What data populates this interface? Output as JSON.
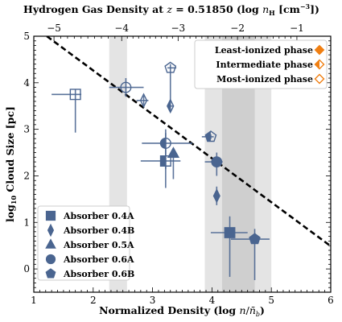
{
  "chart_data": {
    "type": "scatter",
    "title": "Hydrogen Gas Density at z = 0.51850 (log n_H [cm^-3])",
    "title_parts": {
      "prefix": "Hydrogen Gas Density at ",
      "z_symbol": "z",
      "z_eq": " = 0.51850 (log ",
      "n_symbol": "n",
      "n_sub": "H",
      "suffix": " [cm",
      "sup": "−3",
      "close": "])"
    },
    "xlabel": "Normalized Density (log n/n̄_b)",
    "xlabel_parts": {
      "prefix": "Normalized Density (log ",
      "n": "n",
      "slash": "/",
      "nbar": "n̄",
      "sub": "b",
      "close": ")"
    },
    "ylabel": "log10 Cloud Size [pc]",
    "ylabel_parts": {
      "prefix": "log",
      "sub": "10",
      "suffix": " Cloud Size [pc]"
    },
    "xlim": [
      1,
      6
    ],
    "ylim": [
      -0.5,
      5
    ],
    "x_ticks": [
      "1",
      "2",
      "3",
      "4",
      "5",
      "6"
    ],
    "y_ticks": [
      "0",
      "1",
      "2",
      "3",
      "4",
      "5"
    ],
    "top_axis": {
      "ticks": [
        {
          "label": "−5",
          "x": 1.34
        },
        {
          "label": "−4",
          "x": 2.48
        },
        {
          "label": "−3",
          "x": 3.43
        },
        {
          "label": "−2",
          "x": 4.43
        },
        {
          "label": "−1",
          "x": 5.43
        }
      ]
    },
    "shaded_regions": [
      {
        "x0": 2.27,
        "x1": 2.57,
        "shade": "light"
      },
      {
        "x0": 3.88,
        "x1": 5.0,
        "shade": "light"
      },
      {
        "x0": 4.17,
        "x1": 4.72,
        "shade": "dark"
      }
    ],
    "trend_line": {
      "style": "dashed",
      "x": [
        1.22,
        6.0
      ],
      "y": [
        5.0,
        0.49
      ]
    },
    "color": "#4a6590",
    "ionization_legend": {
      "position": "top-right",
      "color": "#f07f12",
      "items": [
        {
          "label": "Least-ionized phase",
          "marker": "filled-diamond"
        },
        {
          "label": "Intermediate phase",
          "marker": "half-diamond"
        },
        {
          "label": "Most-ionized phase",
          "marker": "open-diamond"
        }
      ]
    },
    "absorber_legend": {
      "position": "bottom-left",
      "items": [
        {
          "label": "Absorber 0.4A",
          "marker": "square"
        },
        {
          "label": "Absorber 0.4B",
          "marker": "thin-diamond"
        },
        {
          "label": "Absorber 0.5A",
          "marker": "triangle"
        },
        {
          "label": "Absorber 0.6A",
          "marker": "circle"
        },
        {
          "label": "Absorber 0.6B",
          "marker": "pentagon"
        }
      ]
    },
    "series": [
      {
        "name": "Absorber 0.4A",
        "marker": "square",
        "points": [
          {
            "x": 1.7,
            "y": 3.75,
            "fill": "open",
            "xerr": [
              0.4,
              0.1
            ],
            "yerr": [
              0.82,
              0.1
            ]
          },
          {
            "x": 3.22,
            "y": 2.32,
            "fill": "half",
            "xerr": [
              0.42,
              0.25
            ],
            "yerr": [
              0.58,
              0.6
            ]
          },
          {
            "x": 4.3,
            "y": 0.78,
            "fill": "filled",
            "xerr": [
              0.32,
              0.3
            ],
            "yerr": [
              0.95,
              0.35
            ]
          }
        ]
      },
      {
        "name": "Absorber 0.4B",
        "marker": "thin-diamond",
        "points": [
          {
            "x": 2.85,
            "y": 3.62,
            "fill": "open",
            "xerr": [
              0.12,
              0.08
            ],
            "yerr": [
              0.1,
              0.1
            ]
          },
          {
            "x": 3.3,
            "y": 3.5,
            "fill": "half",
            "xerr": [
              0.05,
              0.05
            ],
            "yerr": [
              0.12,
              0.12
            ]
          },
          {
            "x": 4.08,
            "y": 1.57,
            "fill": "filled",
            "xerr": [
              0.05,
              0.05
            ],
            "yerr": [
              0.2,
              0.2
            ]
          }
        ]
      },
      {
        "name": "Absorber 0.5A",
        "marker": "triangle",
        "points": [
          {
            "x": 3.35,
            "y": 2.48,
            "fill": "filled",
            "xerr": [
              0.05,
              0.05
            ],
            "yerr": [
              0.55,
              0.1
            ]
          }
        ]
      },
      {
        "name": "Absorber 0.6A",
        "marker": "circle",
        "points": [
          {
            "x": 2.55,
            "y": 3.9,
            "fill": "open",
            "xerr": [
              0.28,
              0.3
            ],
            "yerr": [
              0.2,
              0.2
            ]
          },
          {
            "x": 3.22,
            "y": 2.7,
            "fill": "half",
            "xerr": [
              0.4,
              0.45
            ],
            "yerr": [
              0.55,
              0.3
            ]
          },
          {
            "x": 4.08,
            "y": 2.3,
            "fill": "filled",
            "xerr": [
              0.2,
              0.1
            ],
            "yerr": [
              0.3,
              0.2
            ]
          }
        ]
      },
      {
        "name": "Absorber 0.6B",
        "marker": "pentagon",
        "points": [
          {
            "x": 3.3,
            "y": 4.32,
            "fill": "open",
            "xerr": [
              0.05,
              0.1
            ],
            "yerr": [
              0.7,
              0.08
            ]
          },
          {
            "x": 3.98,
            "y": 2.84,
            "fill": "half",
            "xerr": [
              0.15,
              0.05
            ],
            "yerr": [
              0.05,
              0.05
            ]
          },
          {
            "x": 4.72,
            "y": 0.64,
            "fill": "filled",
            "xerr": [
              0.4,
              0.25
            ],
            "yerr": [
              0.88,
              0.22
            ]
          }
        ]
      }
    ]
  }
}
